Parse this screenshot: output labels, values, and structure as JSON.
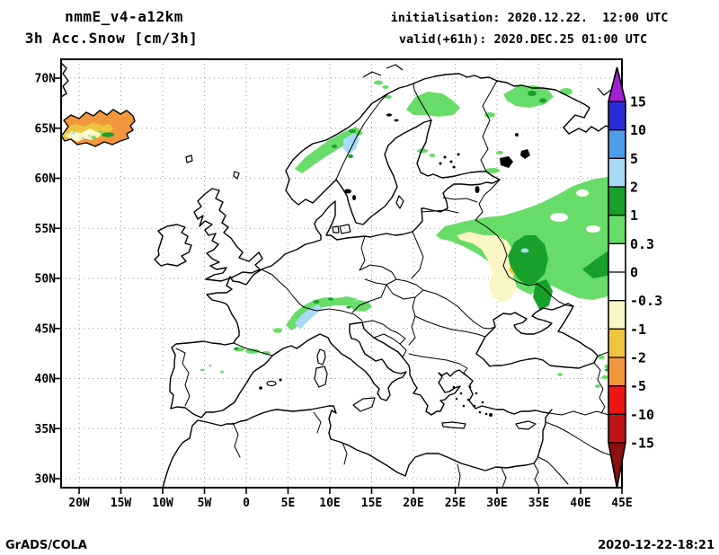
{
  "header": {
    "model": "nmmE_v4-a12km",
    "product": "3h Acc.Snow [cm/3h]",
    "initialisation": "initialisation: 2020.12.22.  12:00 UTC",
    "valid": "valid(+61h): 2020.DEC.25 01:00 UTC"
  },
  "footer": {
    "credit": "GrADS/COLA",
    "timestamp": "2020-12-22-18:21"
  },
  "axes": {
    "lat_labels": [
      "70N",
      "65N",
      "60N",
      "55N",
      "50N",
      "45N",
      "40N",
      "35N",
      "30N"
    ],
    "lon_labels": [
      "20W",
      "15W",
      "10W",
      "5W",
      "0",
      "5E",
      "10E",
      "15E",
      "20E",
      "25E",
      "30E",
      "35E",
      "40E",
      "45E"
    ]
  },
  "colorbar": {
    "levels": [
      "15",
      "10",
      "5",
      "2",
      "1",
      "0.3",
      "0",
      "-0.3",
      "-1",
      "-2",
      "-5",
      "-10",
      "-15"
    ],
    "colors": [
      "#a21fd1",
      "#2b2bd6",
      "#4f9ce8",
      "#a9daf5",
      "#17a12b",
      "#68dc68",
      "#ffffff",
      "#ffffff",
      "#fbf7c4",
      "#eec43e",
      "#f2973b",
      "#ee1515",
      "#bd1515",
      "#8d0f0f"
    ]
  },
  "palette": {
    "light_green": "#68dc68",
    "dark_green": "#17a12b",
    "light_blue": "#a9daf5",
    "medium_blue": "#4f9ce8",
    "cream": "#fbf7c4",
    "gold": "#eec43e",
    "orange": "#f2973b",
    "white": "#ffffff"
  }
}
